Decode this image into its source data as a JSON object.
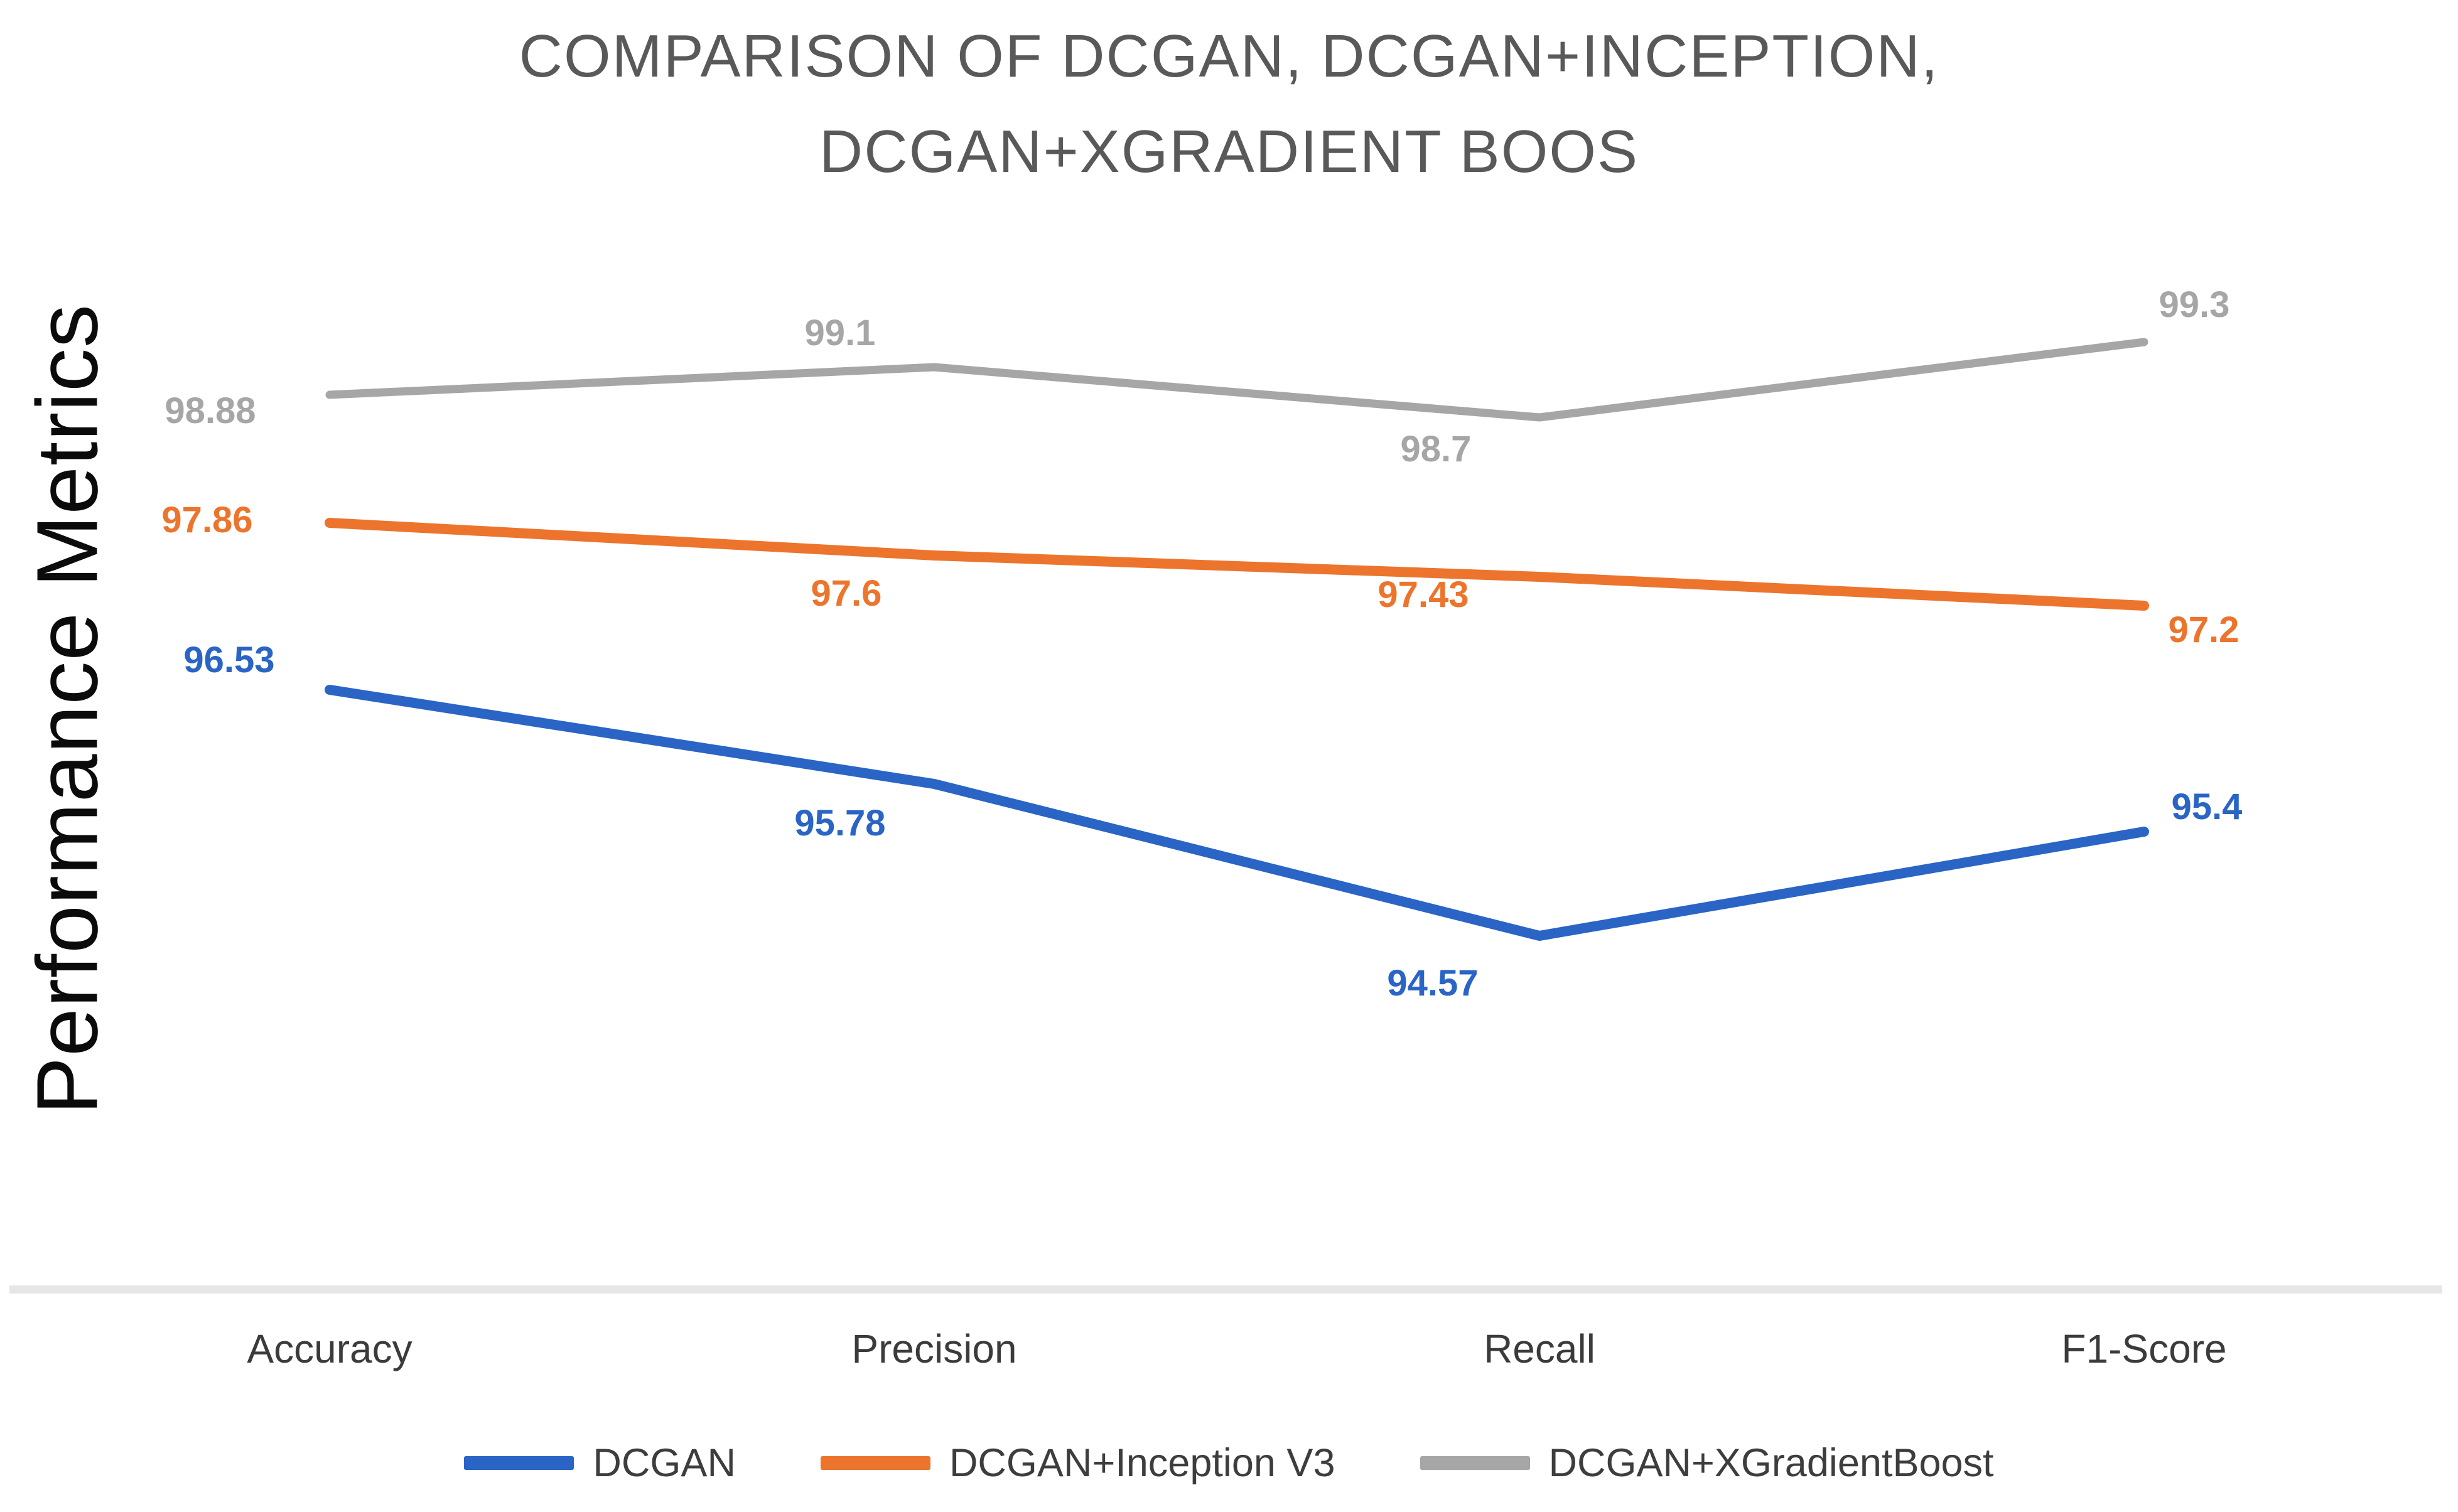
{
  "chart_data": {
    "type": "line",
    "title": "COMPARISON OF DCGAN, DCGAN+INCEPTION, DCGAN+XGRADIENT BOOS",
    "title_line1": "COMPARISON OF DCGAN, DCGAN+INCEPTION,",
    "title_line2": "DCGAN+XGRADIENT BOOS",
    "ylabel": "Performance Metrics",
    "xlabel": "",
    "categories": [
      "Accuracy",
      "Precision",
      "Recall",
      "F1-Score"
    ],
    "series": [
      {
        "name": "DCGAN",
        "color": "#2a64c5",
        "values": [
          96.53,
          95.78,
          94.57,
          95.4
        ]
      },
      {
        "name": "DCGAN+Inception V3",
        "color": "#ec742c",
        "values": [
          97.86,
          97.6,
          97.43,
          97.2
        ]
      },
      {
        "name": "DCGAN+XGradientBoost",
        "color": "#a6a6a6",
        "values": [
          98.88,
          99.1,
          98.7,
          99.3
        ]
      }
    ],
    "data_labels": true,
    "grid": false,
    "legend_position": "bottom",
    "ylim_implied": [
      91.8,
      100.2
    ],
    "title_color": "#595959",
    "axis_line_color": "#e6e6e6"
  }
}
